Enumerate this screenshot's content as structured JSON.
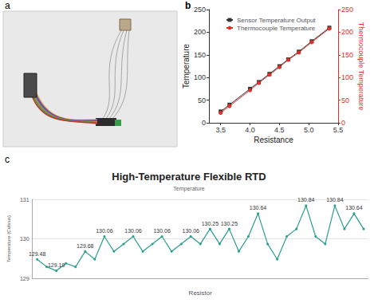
{
  "panel_a": {
    "label": "a"
  },
  "chart_data": [
    {
      "type": "line",
      "annotations": [
        "b"
      ],
      "x_label": "Resistance",
      "y_label": "Temperature",
      "y2_label": "Thermocouple Temperature",
      "x": [
        3.5,
        3.65,
        4.0,
        4.15,
        4.33,
        4.5,
        4.65,
        4.83,
        5.05,
        5.35
      ],
      "series": [
        {
          "name": "Sensor Temperature Output",
          "color": "#333333",
          "marker": "square",
          "values": [
            25,
            40,
            75,
            90,
            108,
            125,
            140,
            157,
            180,
            210
          ]
        },
        {
          "name": "Thermocouple Temperature",
          "color": "#e0302b",
          "marker": "circle",
          "axis": "y2",
          "values": [
            22,
            37,
            72,
            88,
            106,
            123,
            139,
            155,
            178,
            208
          ]
        }
      ],
      "xlim": [
        3.3,
        5.5
      ],
      "xticks": [
        3.5,
        {
          "value": 4,
          "label": "4.0"
        },
        4.5,
        {
          "value": 5,
          "label": "5.0"
        },
        5.5
      ],
      "ylim": [
        0,
        250
      ],
      "yticks": [
        0,
        50,
        100,
        150,
        200,
        250
      ],
      "y2lim": [
        0,
        250
      ],
      "y2ticks": [
        0,
        50,
        100,
        150,
        200,
        250
      ],
      "legend": "upper left",
      "grid": false
    },
    {
      "type": "line",
      "annotations": [
        "c"
      ],
      "title": "High-Temperature Flexible RTD",
      "subtitle": "Temperature",
      "x_label": "Resistor",
      "y_label": "Temperature (Celsius)",
      "categories": [
        null,
        null,
        null,
        null,
        null,
        null,
        null,
        null,
        null,
        null,
        null,
        null,
        null,
        null,
        null,
        null,
        null,
        null,
        null,
        null,
        null,
        null,
        null,
        null,
        null,
        null,
        null,
        null,
        null,
        null,
        null,
        null,
        null,
        null,
        null
      ],
      "values": [
        129.48,
        129.29,
        129.19,
        129.38,
        129.29,
        129.68,
        129.48,
        130.06,
        129.68,
        129.87,
        130.06,
        129.68,
        129.87,
        130.06,
        129.68,
        129.87,
        130.06,
        129.87,
        130.25,
        129.87,
        130.25,
        129.68,
        130.06,
        130.64,
        129.87,
        129.48,
        130.06,
        130.25,
        130.84,
        130.06,
        129.87,
        130.84,
        130.25,
        130.64,
        130.25
      ],
      "value_labels": [
        "129.48",
        null,
        "129.19",
        null,
        null,
        "129.68",
        null,
        "130.06",
        null,
        null,
        "130.06",
        null,
        null,
        "130.06",
        null,
        null,
        "130.06",
        null,
        "130.25",
        null,
        "130.25",
        null,
        null,
        "130.64",
        null,
        null,
        null,
        null,
        "130.84",
        null,
        null,
        "130.84",
        null,
        "130.64",
        null
      ],
      "color": "#2a9d8f",
      "marker": "circle",
      "ylim": [
        129,
        131
      ],
      "yticks": [
        129,
        130,
        131
      ],
      "grid": true,
      "data_labels": true,
      "tick_labels": "y"
    }
  ]
}
